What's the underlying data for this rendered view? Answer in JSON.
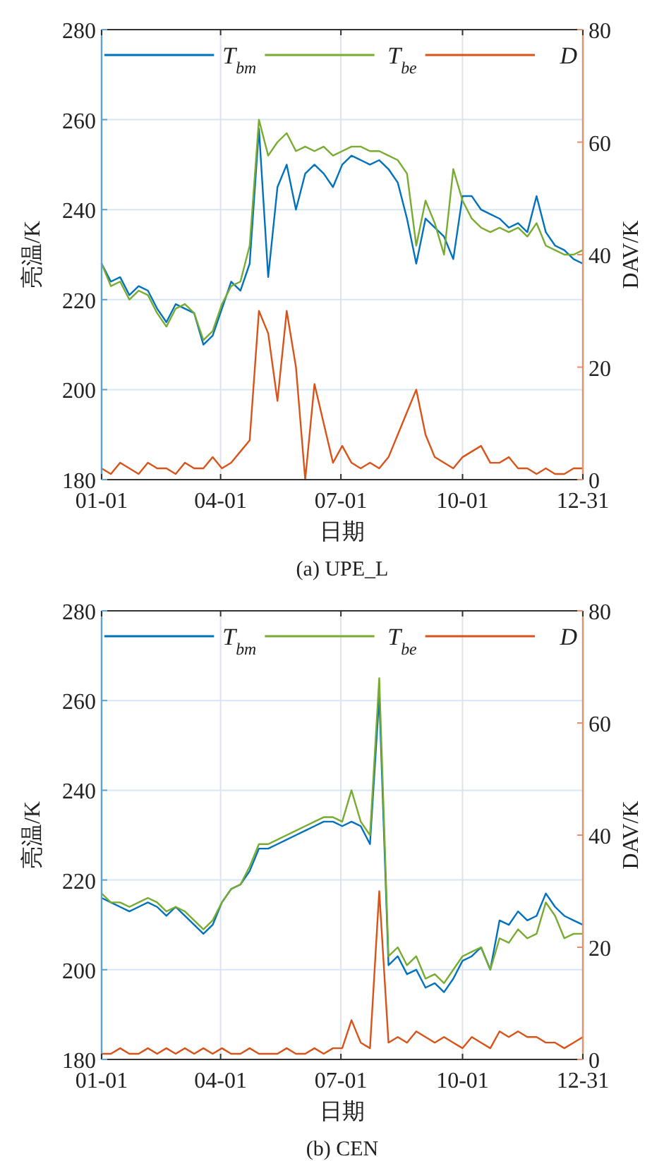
{
  "chart_data": [
    {
      "type": "line",
      "title": "(a) UPE_L",
      "xlabel": "日期",
      "ylabel": "亮温/K",
      "y2label": "DAV/K",
      "legend": "top",
      "grid": true,
      "xlim": [
        "--01-01",
        "--12-31"
      ],
      "xticks": [
        {
          "value": "--01-01",
          "label": "01-01"
        },
        {
          "value": "--04-01",
          "label": "04-01"
        },
        {
          "value": "--07-01",
          "label": "07-01"
        },
        {
          "value": "--10-01",
          "label": "10-01"
        },
        {
          "value": "--12-31",
          "label": "12-31"
        }
      ],
      "ylim": [
        180,
        280
      ],
      "yticks": [
        180,
        200,
        220,
        240,
        260,
        280
      ],
      "y2lim": [
        0,
        80
      ],
      "y2ticks": [
        0,
        20,
        40,
        60,
        80
      ],
      "x": [
        "--01-01",
        "--01-08",
        "--01-15",
        "--01-22",
        "--01-29",
        "--02-05",
        "--02-12",
        "--02-19",
        "--02-26",
        "--03-05",
        "--03-12",
        "--03-19",
        "--03-26",
        "--04-02",
        "--04-09",
        "--04-16",
        "--04-23",
        "--04-30",
        "--05-07",
        "--05-14",
        "--05-21",
        "--05-28",
        "--06-04",
        "--06-11",
        "--06-18",
        "--06-25",
        "--07-02",
        "--07-09",
        "--07-16",
        "--07-23",
        "--07-30",
        "--08-06",
        "--08-13",
        "--08-20",
        "--08-27",
        "--09-03",
        "--09-10",
        "--09-17",
        "--09-24",
        "--10-01",
        "--10-08",
        "--10-15",
        "--10-22",
        "--10-29",
        "--11-05",
        "--11-12",
        "--11-19",
        "--11-26",
        "--12-03",
        "--12-10",
        "--12-17",
        "--12-24",
        "--12-31"
      ],
      "series": [
        {
          "name": "T$_{bm}$",
          "color": "#0072bd",
          "values": [
            228,
            224,
            225,
            221,
            223,
            222,
            218,
            215,
            219,
            218,
            217,
            210,
            212,
            218,
            224,
            222,
            228,
            258,
            225,
            245,
            250,
            240,
            248,
            250,
            248,
            245,
            250,
            252,
            251,
            250,
            251,
            249,
            246,
            238,
            228,
            238,
            236,
            234,
            229,
            243,
            243,
            240,
            239,
            238,
            236,
            237,
            235,
            243,
            235,
            232,
            231,
            229,
            228
          ]
        },
        {
          "name": "T$_{be}$",
          "color": "#77ac30",
          "values": [
            228,
            223,
            224,
            220,
            222,
            221,
            217,
            214,
            218,
            219,
            217,
            211,
            213,
            219,
            223,
            224,
            232,
            260,
            252,
            255,
            257,
            253,
            254,
            253,
            254,
            252,
            253,
            254,
            254,
            253,
            253,
            252,
            251,
            248,
            232,
            242,
            237,
            230,
            249,
            242,
            238,
            236,
            235,
            236,
            235,
            236,
            234,
            237,
            232,
            231,
            230,
            230,
            231
          ]
        },
        {
          "name": "D",
          "color": "#d95319",
          "axis": "y2",
          "values": [
            2,
            1,
            3,
            2,
            1,
            3,
            2,
            2,
            1,
            3,
            2,
            2,
            4,
            2,
            3,
            5,
            7,
            30,
            26,
            14,
            30,
            20,
            0,
            17,
            10,
            3,
            6,
            3,
            2,
            3,
            2,
            4,
            8,
            12,
            16,
            8,
            4,
            3,
            2,
            4,
            5,
            6,
            3,
            3,
            4,
            2,
            2,
            1,
            2,
            1,
            1,
            2,
            2
          ]
        }
      ]
    },
    {
      "type": "line",
      "title": "(b) CEN",
      "xlabel": "日期",
      "ylabel": "亮温/K",
      "y2label": "DAV/K",
      "legend": "top",
      "grid": true,
      "xlim": [
        "--01-01",
        "--12-31"
      ],
      "xticks": [
        {
          "value": "--01-01",
          "label": "01-01"
        },
        {
          "value": "--04-01",
          "label": "04-01"
        },
        {
          "value": "--07-01",
          "label": "07-01"
        },
        {
          "value": "--10-01",
          "label": "10-01"
        },
        {
          "value": "--12-31",
          "label": "12-31"
        }
      ],
      "ylim": [
        180,
        280
      ],
      "yticks": [
        180,
        200,
        220,
        240,
        260,
        280
      ],
      "y2lim": [
        0,
        80
      ],
      "y2ticks": [
        0,
        20,
        40,
        60,
        80
      ],
      "x": [
        "--01-01",
        "--01-08",
        "--01-15",
        "--01-22",
        "--01-29",
        "--02-05",
        "--02-12",
        "--02-19",
        "--02-26",
        "--03-05",
        "--03-12",
        "--03-19",
        "--03-26",
        "--04-02",
        "--04-09",
        "--04-16",
        "--04-23",
        "--04-30",
        "--05-07",
        "--05-14",
        "--05-21",
        "--05-28",
        "--06-04",
        "--06-11",
        "--06-18",
        "--06-25",
        "--07-02",
        "--07-09",
        "--07-16",
        "--07-23",
        "--07-30",
        "--08-06",
        "--08-13",
        "--08-20",
        "--08-27",
        "--09-03",
        "--09-10",
        "--09-17",
        "--09-24",
        "--10-01",
        "--10-08",
        "--10-15",
        "--10-22",
        "--10-29",
        "--11-05",
        "--11-12",
        "--11-19",
        "--11-26",
        "--12-03",
        "--12-10",
        "--12-17",
        "--12-24",
        "--12-31"
      ],
      "series": [
        {
          "name": "T$_{bm}$",
          "color": "#0072bd",
          "values": [
            216,
            215,
            214,
            213,
            214,
            215,
            214,
            212,
            214,
            212,
            210,
            208,
            210,
            215,
            218,
            219,
            222,
            227,
            227,
            228,
            229,
            230,
            231,
            232,
            233,
            233,
            232,
            233,
            232,
            228,
            261,
            201,
            203,
            199,
            200,
            196,
            197,
            195,
            198,
            202,
            203,
            205,
            200,
            211,
            210,
            213,
            211,
            212,
            217,
            214,
            212,
            211,
            210
          ]
        },
        {
          "name": "T$_{be}$",
          "color": "#77ac30",
          "values": [
            217,
            215,
            215,
            214,
            215,
            216,
            215,
            213,
            214,
            213,
            211,
            209,
            211,
            215,
            218,
            219,
            223,
            228,
            228,
            229,
            230,
            231,
            232,
            233,
            234,
            234,
            233,
            240,
            233,
            230,
            265,
            203,
            205,
            201,
            203,
            198,
            199,
            197,
            200,
            203,
            204,
            205,
            200,
            207,
            206,
            209,
            207,
            208,
            215,
            212,
            207,
            208,
            208
          ]
        },
        {
          "name": "D",
          "color": "#d95319",
          "axis": "y2",
          "values": [
            1,
            1,
            2,
            1,
            1,
            2,
            1,
            2,
            1,
            2,
            1,
            2,
            1,
            2,
            1,
            1,
            2,
            1,
            1,
            1,
            2,
            1,
            1,
            2,
            1,
            2,
            2,
            7,
            3,
            2,
            30,
            3,
            4,
            3,
            5,
            4,
            3,
            4,
            3,
            2,
            4,
            3,
            2,
            5,
            4,
            5,
            4,
            4,
            3,
            3,
            2,
            3,
            4
          ]
        }
      ]
    }
  ]
}
